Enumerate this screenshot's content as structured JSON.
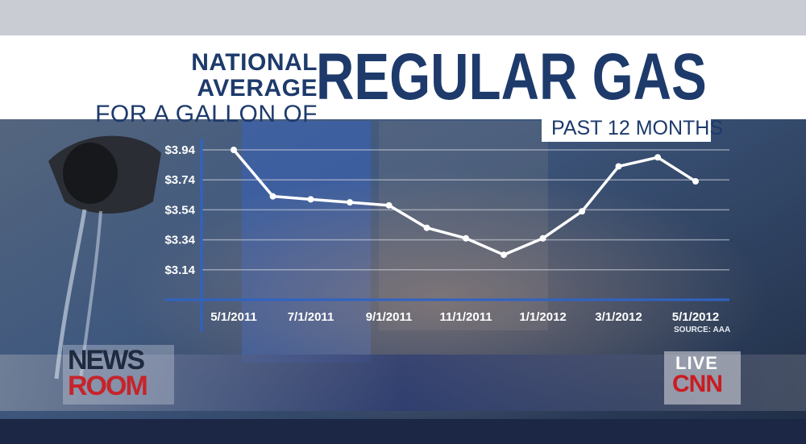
{
  "title": {
    "line1": "NATIONAL AVERAGE",
    "line2": "FOR A GALLON OF",
    "main": "REGULAR GAS"
  },
  "subtitle": "PAST 12 MONTHS",
  "source": "SOURCE: AAA",
  "logos": {
    "newsroom_line1": "NEWS",
    "newsroom_line2": "ROOM",
    "live": "LIVE",
    "network": "CNN"
  },
  "colors": {
    "title": "#1d3a6b",
    "axis": "#2f63c4",
    "line": "#ffffff"
  },
  "chart_data": {
    "type": "line",
    "title": "NATIONAL AVERAGE FOR A GALLON OF REGULAR GAS",
    "subtitle": "PAST 12 MONTHS",
    "xlabel": "",
    "ylabel": "",
    "x_tick_labels": [
      "5/1/2011",
      "7/1/2011",
      "9/1/2011",
      "11/1/2011",
      "1/1/2012",
      "3/1/2012",
      "5/1/2012"
    ],
    "y_tick_labels": [
      "$3.94",
      "$3.74",
      "$3.54",
      "$3.34",
      "$3.14"
    ],
    "y_ticks": [
      3.94,
      3.74,
      3.54,
      3.34,
      3.14
    ],
    "ylim": [
      2.94,
      3.94
    ],
    "grid": true,
    "legend": "none",
    "series": [
      {
        "points": [
          {
            "x": "5/1/2011",
            "y": 3.94
          },
          {
            "x": "6/1/2011",
            "y": 3.63
          },
          {
            "x": "7/1/2011",
            "y": 3.61
          },
          {
            "x": "8/1/2011",
            "y": 3.59
          },
          {
            "x": "9/1/2011",
            "y": 3.57
          },
          {
            "x": "10/1/2011",
            "y": 3.42
          },
          {
            "x": "11/1/2011",
            "y": 3.35
          },
          {
            "x": "12/1/2011",
            "y": 3.24
          },
          {
            "x": "1/1/2012",
            "y": 3.35
          },
          {
            "x": "2/1/2012",
            "y": 3.53
          },
          {
            "x": "3/1/2012",
            "y": 3.83
          },
          {
            "x": "4/1/2012",
            "y": 3.89
          },
          {
            "x": "5/1/2012",
            "y": 3.73
          }
        ]
      }
    ]
  }
}
